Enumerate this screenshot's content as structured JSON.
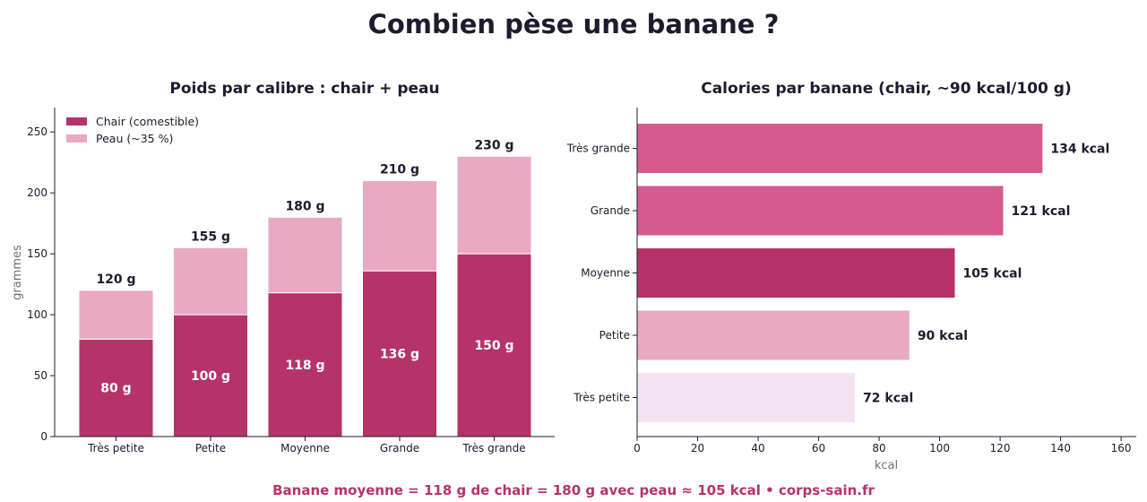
{
  "title": "Combien pèse une banane ?",
  "footer": "Banane moyenne = 118 g de chair = 180 g avec peau ≈ 105 kcal  •  corps-sain.fr",
  "chart_data": [
    {
      "type": "bar",
      "stacked": true,
      "title": "Poids par calibre : chair + peau",
      "xlabel": "",
      "ylabel": "grammes",
      "ylim": [
        0,
        270
      ],
      "yticks": [
        0,
        50,
        100,
        150,
        200,
        250
      ],
      "categories": [
        "Très petite",
        "Petite",
        "Moyenne",
        "Grande",
        "Très grande"
      ],
      "series": [
        {
          "name": "Chair (comestible)",
          "values": [
            80,
            100,
            118,
            136,
            150
          ],
          "color": "#b5336a",
          "labels": [
            "80 g",
            "100 g",
            "118 g",
            "136 g",
            "150 g"
          ]
        },
        {
          "name": "Peau (~35 %)",
          "values": [
            40,
            55,
            62,
            74,
            80
          ],
          "color": "#e8a9c3"
        }
      ],
      "totals": [
        120,
        155,
        180,
        210,
        230
      ],
      "total_labels": [
        "120 g",
        "155 g",
        "180 g",
        "210 g",
        "230 g"
      ],
      "legend": "top-left",
      "grid": false
    },
    {
      "type": "bar",
      "orientation": "horizontal",
      "title": "Calories par banane (chair, ~90 kcal/100 g)",
      "xlabel": "kcal",
      "ylabel": "",
      "xlim": [
        0,
        165
      ],
      "xticks": [
        0,
        20,
        40,
        60,
        80,
        100,
        120,
        140,
        160
      ],
      "categories": [
        "Très petite",
        "Petite",
        "Moyenne",
        "Grande",
        "Très grande"
      ],
      "values": [
        72,
        90,
        105,
        121,
        134
      ],
      "labels": [
        "72 kcal",
        "90 kcal",
        "105 kcal",
        "121 kcal",
        "134 kcal"
      ],
      "colors": [
        "#f3e2f1",
        "#e8a9c3",
        "#b5336a",
        "#d45a90",
        "#d45a90"
      ],
      "grid": false
    }
  ]
}
